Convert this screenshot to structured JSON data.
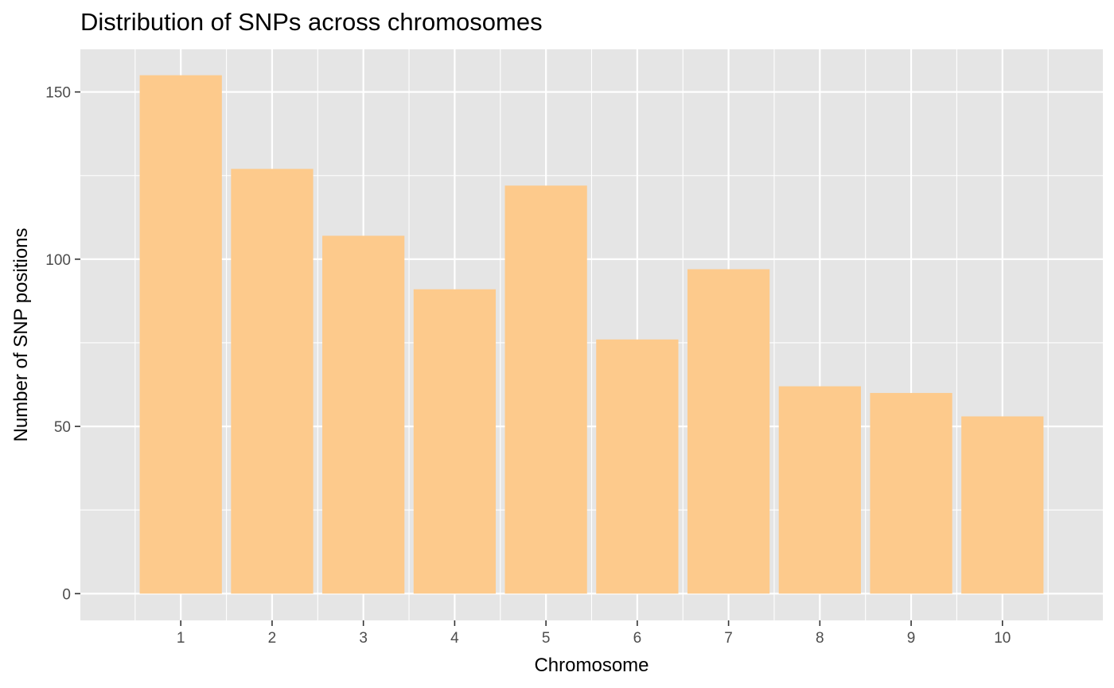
{
  "chart_data": {
    "type": "bar",
    "title": "Distribution of SNPs across chromosomes",
    "xlabel": "Chromosome",
    "ylabel": "Number of SNP positions",
    "categories": [
      "1",
      "2",
      "3",
      "4",
      "5",
      "6",
      "7",
      "8",
      "9",
      "10"
    ],
    "values": [
      155,
      127,
      107,
      91,
      122,
      76,
      97,
      62,
      60,
      53
    ],
    "ylim": [
      0,
      160
    ],
    "yticks": [
      0,
      50,
      100,
      150
    ],
    "grid": true,
    "legend": "none",
    "colors": {
      "bar": "#fdca8c",
      "panel": "#e5e5e5",
      "grid": "#ffffff"
    }
  }
}
